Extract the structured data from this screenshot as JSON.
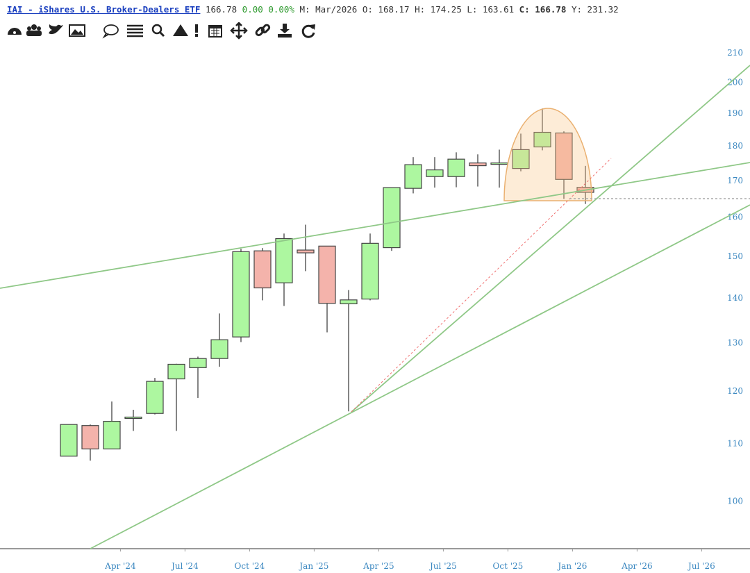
{
  "header": {
    "symbol": "IAI - iShares U.S. Broker-Dealers ETF",
    "price": "166.78",
    "change": "0.00",
    "change_pct": "0.00%",
    "stats": [
      {
        "label": "M:",
        "value": "Mar/2026"
      },
      {
        "label": "O:",
        "value": "168.17"
      },
      {
        "label": "H:",
        "value": "174.25"
      },
      {
        "label": "L:",
        "value": "163.61"
      },
      {
        "label": "C:",
        "value": "166.78"
      },
      {
        "label": "Y:",
        "value": "231.32"
      }
    ]
  },
  "chart_data": {
    "type": "candlestick",
    "x": [
      "2024-03",
      "2024-04",
      "2024-05",
      "2024-06",
      "2024-07",
      "2024-08",
      "2024-09",
      "2024-10",
      "2024-11",
      "2024-12",
      "2025-01",
      "2025-02",
      "2025-03",
      "2025-04",
      "2025-05",
      "2025-06",
      "2025-07",
      "2025-08",
      "2025-09",
      "2025-10",
      "2025-11",
      "2025-12",
      "2026-01",
      "2026-02",
      "2026-03"
    ],
    "open": [
      107.8,
      113.4,
      109.1,
      114.8,
      115.7,
      122.5,
      124.8,
      126.7,
      131.3,
      151.4,
      143.6,
      151.6,
      152.6,
      138.7,
      139.8,
      152.2,
      167.9,
      171.2,
      171.2,
      175.1,
      174.7,
      173.5,
      179.8,
      184.0,
      168.17
    ],
    "high": [
      113.6,
      113.6,
      118.0,
      116.4,
      122.7,
      125.6,
      127.1,
      136.5,
      151.9,
      152.1,
      155.8,
      158.1,
      152.6,
      141.9,
      155.8,
      168.1,
      176.8,
      176.8,
      178.2,
      177.6,
      179.0,
      183.8,
      191.6,
      184.5,
      174.25
    ],
    "low": [
      107.8,
      107.0,
      109.1,
      112.4,
      115.5,
      112.4,
      118.7,
      125.0,
      130.2,
      139.5,
      138.2,
      146.4,
      132.3,
      116.1,
      139.5,
      151.4,
      166.5,
      168.1,
      168.2,
      168.4,
      168.1,
      172.7,
      178.8,
      165.0,
      163.61
    ],
    "close": [
      113.6,
      109.1,
      114.2,
      115.0,
      122.0,
      125.5,
      126.7,
      130.7,
      151.2,
      142.4,
      154.5,
      150.9,
      138.8,
      139.6,
      153.3,
      168.1,
      174.6,
      173.1,
      176.2,
      174.3,
      175.1,
      179.0,
      184.2,
      170.4,
      166.78
    ],
    "up_color": "#adf7a0",
    "down_color": "#f4b3ab",
    "ylim": [
      92.5,
      214
    ],
    "log_scale": true,
    "yticks": [
      100,
      110,
      120,
      130,
      140,
      150,
      160,
      170,
      180,
      190,
      200,
      210
    ],
    "xticks": [
      {
        "value": "2024-04",
        "label": "Apr '24"
      },
      {
        "value": "2024-07",
        "label": "Jul '24"
      },
      {
        "value": "2024-10",
        "label": "Oct '24"
      },
      {
        "value": "2025-01",
        "label": "Jan '25"
      },
      {
        "value": "2025-04",
        "label": "Apr '25"
      },
      {
        "value": "2025-07",
        "label": "Jul '25"
      },
      {
        "value": "2025-10",
        "label": "Oct '25"
      },
      {
        "value": "2026-01",
        "label": "Jan '26"
      },
      {
        "value": "2026-04",
        "label": "Apr '26"
      },
      {
        "value": "2026-07",
        "label": "Jul '26"
      }
    ]
  }
}
